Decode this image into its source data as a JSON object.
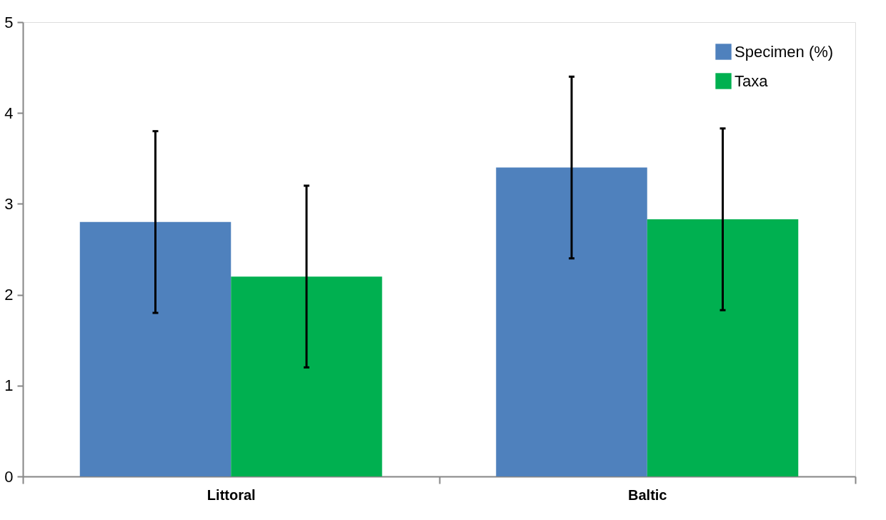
{
  "chart_data": {
    "type": "bar",
    "categories": [
      "Littoral",
      "Baltic"
    ],
    "series": [
      {
        "name": "Specimen (%)",
        "color": "#4f81bd",
        "values": [
          2.8,
          3.4
        ],
        "errors": [
          1.0,
          1.0
        ]
      },
      {
        "name": "Taxa",
        "color": "#00b050",
        "values": [
          2.2,
          2.83
        ],
        "errors": [
          1.0,
          1.0
        ]
      }
    ],
    "ylim": [
      0,
      5
    ],
    "yticks": [
      0,
      1,
      2,
      3,
      4,
      5
    ],
    "grid": false,
    "legend": "top right"
  }
}
